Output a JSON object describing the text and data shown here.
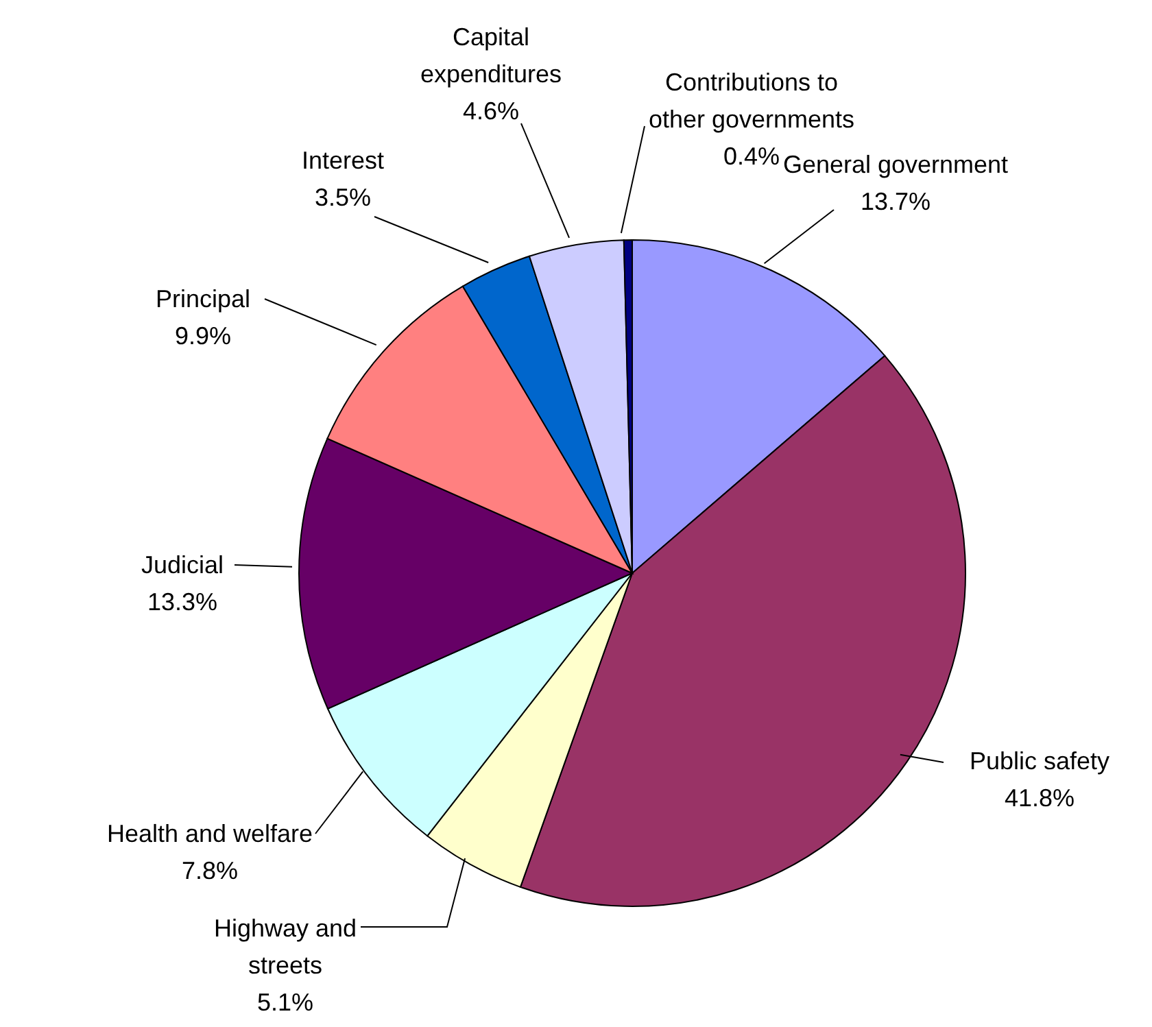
{
  "chart_data": {
    "type": "pie",
    "categories": [
      "General government",
      "Public safety",
      "Highway and streets",
      "Health and welfare",
      "Judicial",
      "Principal",
      "Interest",
      "Capital expenditures",
      "Contributions to other governments"
    ],
    "values": [
      13.7,
      41.8,
      5.1,
      7.8,
      13.3,
      9.9,
      3.5,
      4.6,
      0.4
    ],
    "colors": [
      "#9999ff",
      "#993366",
      "#ffffcc",
      "#ccffff",
      "#660066",
      "#ff8080",
      "#0066cc",
      "#ccccff",
      "#000080"
    ],
    "value_labels": [
      "13.7%",
      "41.8%",
      "5.1%",
      "7.8%",
      "13.3%",
      "9.9%",
      "3.5%",
      "4.6%",
      "0.4%"
    ]
  }
}
